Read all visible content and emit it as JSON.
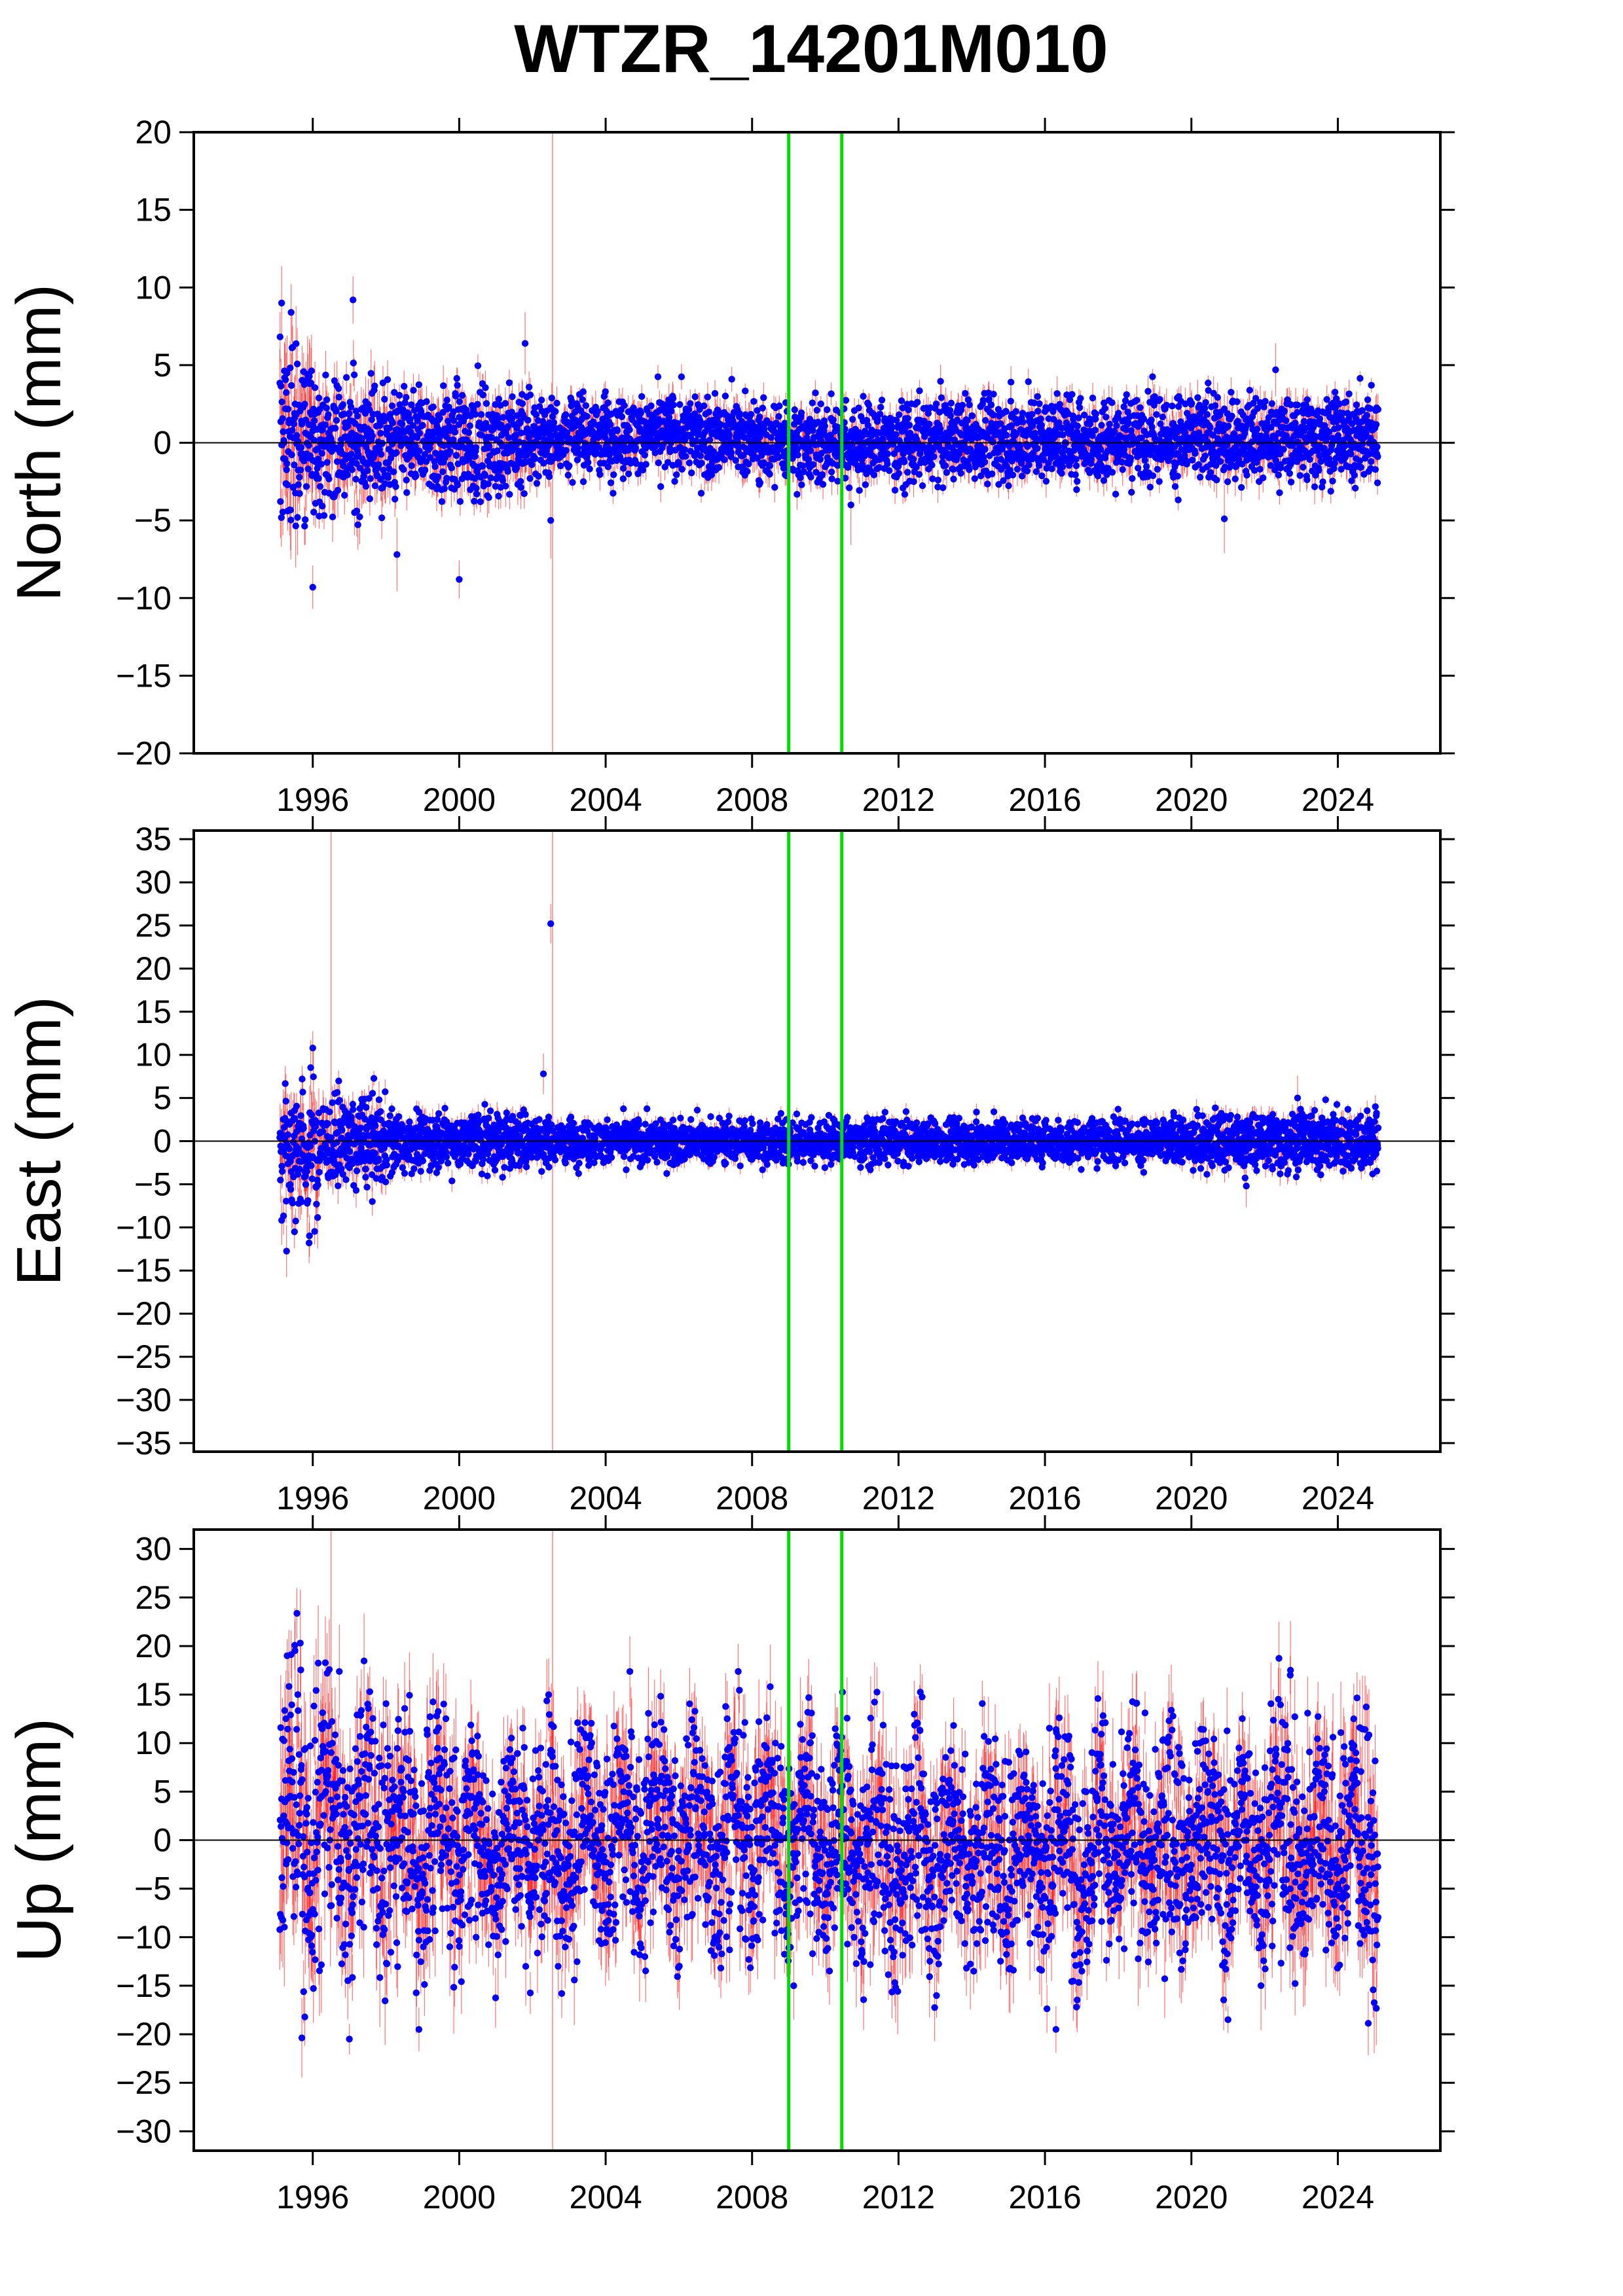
{
  "title": "WTZR_14201M010",
  "colors": {
    "points": "#0000ff",
    "error_bars": "#ff0000",
    "markers": "#00dd00",
    "zero_line": "#000000",
    "frame": "#000000"
  },
  "chart_data": [
    {
      "type": "scatter",
      "ylabel": "North (mm)",
      "ylim": [
        -20,
        20
      ],
      "yticks": [
        -20,
        -15,
        -10,
        -5,
        0,
        5,
        10,
        15,
        20
      ],
      "xlim": [
        1992.75,
        2026.8
      ],
      "xticks": [
        1996,
        2000,
        2004,
        2008,
        2012,
        2016,
        2020,
        2024
      ],
      "epoch_range": [
        1995.1,
        2025.1
      ],
      "zero_line": 0,
      "vertical_markers": [
        2009.0,
        2010.45
      ],
      "envelope": [
        {
          "start": 1995.1,
          "end": 1996.0,
          "low": -7,
          "high": 8
        },
        {
          "start": 1996.0,
          "end": 1998.0,
          "low": -5,
          "high": 5
        },
        {
          "start": 1998.0,
          "end": 2002.0,
          "low": -4,
          "high": 4
        },
        {
          "start": 2002.0,
          "end": 2008.0,
          "low": -2.5,
          "high": 3.5
        },
        {
          "start": 2008.0,
          "end": 2013.0,
          "low": -3,
          "high": 3
        },
        {
          "start": 2013.0,
          "end": 2025.1,
          "low": -3,
          "high": 3.5
        }
      ],
      "outliers": [
        {
          "x": 1995.15,
          "y": 9.0
        },
        {
          "x": 1997.1,
          "y": 9.2
        },
        {
          "x": 1996.0,
          "y": -9.3
        },
        {
          "x": 1998.3,
          "y": -7.2
        },
        {
          "x": 2000.0,
          "y": -8.8
        },
        {
          "x": 2001.8,
          "y": 6.4
        },
        {
          "x": 2002.5,
          "y": -5.0
        },
        {
          "x": 2010.7,
          "y": -4.0
        },
        {
          "x": 2020.9,
          "y": -4.9
        },
        {
          "x": 2022.3,
          "y": 4.7
        }
      ]
    },
    {
      "type": "scatter",
      "ylabel": "East (mm)",
      "ylim": [
        -36,
        36
      ],
      "yticks": [
        -35,
        -30,
        -25,
        -20,
        -15,
        -10,
        -5,
        0,
        5,
        10,
        15,
        20,
        25,
        30,
        35
      ],
      "xlim": [
        1992.75,
        2026.8
      ],
      "xticks": [
        1996,
        2000,
        2004,
        2008,
        2012,
        2016,
        2020,
        2024
      ],
      "epoch_range": [
        1995.1,
        2025.1
      ],
      "zero_line": 0,
      "vertical_markers": [
        2009.0,
        2010.45
      ],
      "envelope": [
        {
          "start": 1995.1,
          "end": 1996.2,
          "low": -11,
          "high": 9
        },
        {
          "start": 1996.2,
          "end": 1998.0,
          "low": -6,
          "high": 6
        },
        {
          "start": 1998.0,
          "end": 2002.0,
          "low": -4,
          "high": 4
        },
        {
          "start": 2002.0,
          "end": 2008.0,
          "low": -3,
          "high": 3
        },
        {
          "start": 2008.0,
          "end": 2020.0,
          "low": -3,
          "high": 3
        },
        {
          "start": 2020.0,
          "end": 2025.1,
          "low": -4,
          "high": 4
        }
      ],
      "outliers": [
        {
          "x": 2002.5,
          "y": 25.2
        },
        {
          "x": 1996.0,
          "y": 10.8
        },
        {
          "x": 1995.9,
          "y": -11.8
        },
        {
          "x": 1995.5,
          "y": -10.5
        },
        {
          "x": 2002.3,
          "y": 7.8
        },
        {
          "x": 2022.9,
          "y": 5.0
        },
        {
          "x": 2021.5,
          "y": -5.2
        }
      ]
    },
    {
      "type": "scatter",
      "ylabel": "Up (mm)",
      "ylim": [
        -32,
        32
      ],
      "yticks": [
        -30,
        -25,
        -20,
        -15,
        -10,
        -5,
        0,
        5,
        10,
        15,
        20,
        25,
        30
      ],
      "xlim": [
        1992.75,
        2026.8
      ],
      "xticks": [
        1996,
        2000,
        2004,
        2008,
        2012,
        2016,
        2020,
        2024
      ],
      "epoch_range": [
        1995.1,
        2025.1
      ],
      "zero_line": 0,
      "vertical_markers": [
        2009.0,
        2010.45
      ],
      "envelope": [
        {
          "start": 1995.1,
          "end": 1996.5,
          "low": -16,
          "high": 19
        },
        {
          "start": 1996.5,
          "end": 2000.0,
          "low": -14,
          "high": 16
        },
        {
          "start": 2000.0,
          "end": 2004.0,
          "low": -13,
          "high": 13
        },
        {
          "start": 2004.0,
          "end": 2010.0,
          "low": -13,
          "high": 14
        },
        {
          "start": 2010.0,
          "end": 2016.0,
          "low": -14,
          "high": 12
        },
        {
          "start": 2016.0,
          "end": 2022.0,
          "low": -14,
          "high": 13
        },
        {
          "start": 2022.0,
          "end": 2025.1,
          "low": -15,
          "high": 16
        }
      ],
      "outliers": [
        {
          "x": 1997.0,
          "y": -20.5
        },
        {
          "x": 1998.9,
          "y": -19.5
        },
        {
          "x": 2016.3,
          "y": -19.5
        },
        {
          "x": 2021.0,
          "y": -18.5
        },
        {
          "x": 1995.3,
          "y": 19.0
        },
        {
          "x": 2002.8,
          "y": -15.8
        },
        {
          "x": 2022.7,
          "y": 17.0
        }
      ]
    }
  ]
}
